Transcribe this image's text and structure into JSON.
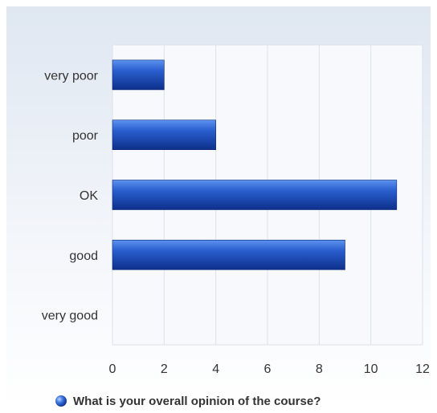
{
  "chart_data": {
    "type": "bar",
    "orientation": "horizontal",
    "categories": [
      "very poor",
      "poor",
      "OK",
      "good",
      "very good"
    ],
    "series": [
      {
        "name": "What is your overall opinion of the course?",
        "values": [
          2,
          4,
          11,
          9,
          0
        ],
        "color": "#2a5fcf"
      }
    ],
    "xlim": [
      0,
      12
    ],
    "xticks": [
      0,
      2,
      4,
      6,
      8,
      10,
      12
    ],
    "grid": true,
    "legend_position": "bottom-center"
  },
  "colors": {
    "bar_light": "#5c92ee",
    "bar_mid": "#2a5fcf",
    "bar_dark": "#0d2f8a",
    "grid": "#dce3ec",
    "plot_bg": "#f7f9fc",
    "text": "#333333"
  },
  "legend_icon": "blue-sphere-icon"
}
